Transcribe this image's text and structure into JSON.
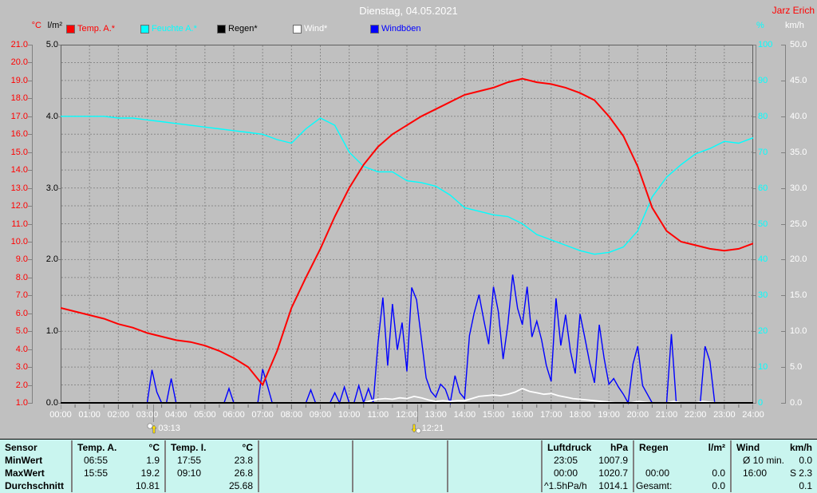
{
  "window": {
    "title": "Dienstag, 04.05.2021",
    "station_name": "Jarz Erich"
  },
  "legend": {
    "items": [
      {
        "label": "Temp. A.*",
        "color": "#ff0000"
      },
      {
        "label": "Feuchte A.*",
        "color": "#00ffff"
      },
      {
        "label": "Regen*",
        "color": "#000000"
      },
      {
        "label": "Wind*",
        "color": "#ffffff"
      },
      {
        "label": "Windböen",
        "color": "#0000ff"
      }
    ]
  },
  "chart_data": {
    "type": "line",
    "title": "Dienstag, 04.05.2021",
    "grid": "dashed-gray",
    "x_range_hours": [
      0,
      24
    ],
    "x_tick_labels": [
      "00:00",
      "01:00",
      "02:00",
      "03:00",
      "04:00",
      "05:00",
      "06:00",
      "07:00",
      "08:00",
      "09:00",
      "10:00",
      "11:00",
      "12:00",
      "13:00",
      "14:00",
      "15:00",
      "16:00",
      "17:00",
      "18:00",
      "19:00",
      "20:00",
      "21:00",
      "22:00",
      "23:00",
      "24:00"
    ],
    "axes": {
      "temp": {
        "unit": "°C",
        "color": "#ff0000",
        "min": 1,
        "max": 21,
        "tick_labels": [
          "21.0",
          "20.0",
          "19.0",
          "18.0",
          "17.0",
          "16.0",
          "15.0",
          "14.0",
          "13.0",
          "12.0",
          "11.0",
          "10.0",
          "9.0",
          "8.0",
          "7.0",
          "6.0",
          "5.0",
          "4.0",
          "3.0",
          "2.0",
          "1.0"
        ]
      },
      "rain": {
        "unit": "l/m²",
        "color": "#000000",
        "min": 0,
        "max": 5,
        "tick_labels": [
          "5.0",
          "4.0",
          "3.0",
          "2.0",
          "1.0",
          "0.0"
        ]
      },
      "hum": {
        "unit": "%",
        "color": "#00ffff",
        "min": 0,
        "max": 100,
        "tick_labels": [
          "100",
          "90",
          "80",
          "70",
          "60",
          "50",
          "40",
          "30",
          "20",
          "10",
          "0"
        ]
      },
      "wind": {
        "unit": "km/h",
        "color": "#ffffff",
        "min": 0,
        "max": 50,
        "tick_labels": [
          "50.0",
          "45.0",
          "40.0",
          "35.0",
          "30.0",
          "25.0",
          "20.0",
          "15.0",
          "10.0",
          "5.0",
          "0.0"
        ]
      }
    },
    "series": [
      {
        "name": "Temp. A.*",
        "axis": "temp",
        "color": "#ff0000",
        "width": 2,
        "step_hours": 0.5,
        "values": [
          6.3,
          6.1,
          5.9,
          5.7,
          5.4,
          5.2,
          4.9,
          4.7,
          4.5,
          4.4,
          4.2,
          3.9,
          3.5,
          3.0,
          2.0,
          3.9,
          6.3,
          8.0,
          9.6,
          11.4,
          13.0,
          14.3,
          15.3,
          16.0,
          16.5,
          17.0,
          17.4,
          17.8,
          18.2,
          18.4,
          18.6,
          18.9,
          19.1,
          18.9,
          18.8,
          18.6,
          18.3,
          17.9,
          17.0,
          15.9,
          14.2,
          11.9,
          10.6,
          10.0,
          9.8,
          9.6,
          9.5,
          9.6,
          9.9
        ]
      },
      {
        "name": "Feuchte A.*",
        "axis": "hum",
        "color": "#00ffff",
        "width": 1.4,
        "step_hours": 0.5,
        "values": [
          80,
          80,
          80,
          80,
          79.5,
          79.5,
          79,
          78.5,
          78,
          77.5,
          77,
          76.5,
          76,
          75.5,
          75,
          73.5,
          72.5,
          76.5,
          79.5,
          77.5,
          70,
          66,
          64.5,
          64.5,
          62,
          61.5,
          60.5,
          58,
          54.5,
          53.5,
          52.5,
          52,
          50,
          47,
          45.5,
          44,
          42.5,
          41.5,
          42,
          43.5,
          48,
          57.5,
          63,
          66.5,
          69.5,
          71,
          73,
          72.5,
          74
        ]
      },
      {
        "name": "Regen*",
        "axis": "rain",
        "color": "#000000",
        "width": 1.5,
        "step_hours": 6,
        "values": [
          0,
          0,
          0,
          0,
          0
        ]
      },
      {
        "name": "Wind*",
        "axis": "wind",
        "color": "#ffffff",
        "width": 1.8,
        "step_hours": 0.25,
        "values": [
          0,
          0,
          0,
          0,
          0,
          0,
          0,
          0,
          0,
          0,
          0,
          0,
          0,
          0,
          0,
          0,
          0,
          0,
          0,
          0,
          0,
          0,
          0,
          0,
          0,
          0,
          0,
          0,
          0,
          0,
          0,
          0,
          0,
          0,
          0,
          0,
          0,
          0,
          0,
          0,
          0,
          0,
          0,
          0.3,
          0.5,
          0.6,
          0.5,
          0.7,
          0.6,
          0.9,
          0.7,
          0.4,
          0.2,
          0.3,
          0.2,
          0.3,
          0.3,
          0.6,
          0.9,
          1.0,
          1.1,
          1.0,
          1.2,
          1.5,
          2.0,
          1.6,
          1.4,
          1.2,
          1.3,
          1.0,
          0.8,
          0.6,
          0.5,
          0.4,
          0.3,
          0.2,
          0.1,
          0,
          0,
          0,
          0.2,
          0.1,
          0,
          0,
          0,
          0.2,
          0,
          0,
          0,
          0.2,
          0.1,
          0,
          0,
          0,
          0,
          0,
          0
        ]
      },
      {
        "name": "Windböen",
        "axis": "wind",
        "color": "#0000ff",
        "width": 1.4,
        "step_hours": 0.16667,
        "values": [
          0,
          0,
          0,
          0,
          0,
          0,
          0,
          0,
          0,
          0,
          0,
          0,
          0,
          0,
          0,
          0,
          0,
          0,
          0,
          4.6,
          1.5,
          0,
          0,
          3.4,
          0,
          0,
          0,
          0,
          0,
          0,
          0,
          0,
          0,
          0,
          0,
          2.0,
          0,
          0,
          0,
          0,
          0,
          0,
          4.7,
          2.4,
          0,
          0,
          0,
          0,
          0,
          0,
          0,
          0,
          1.8,
          0,
          0,
          0,
          0,
          1.4,
          0,
          2.2,
          0,
          0,
          2.4,
          0,
          2.0,
          0,
          8.4,
          14.7,
          5.2,
          13.8,
          7.4,
          11.2,
          4.4,
          16.1,
          14.4,
          9.0,
          3.5,
          1.6,
          0.8,
          2.6,
          1.9,
          0,
          3.8,
          1.4,
          0.6,
          9.4,
          12.6,
          15.1,
          11.5,
          8.2,
          16.2,
          12.8,
          6.1,
          11.0,
          17.9,
          13.2,
          10.9,
          16.2,
          9.2,
          11.4,
          8.8,
          5.2,
          3.0,
          14.6,
          8.0,
          12.3,
          7.2,
          4.1,
          12.4,
          9.1,
          5.6,
          2.8,
          10.9,
          6.2,
          2.6,
          3.4,
          2.2,
          1.2,
          0,
          5.4,
          7.9,
          2.4,
          1.2,
          0,
          0,
          0,
          0,
          9.6,
          0,
          0,
          0,
          0,
          0,
          0,
          7.9,
          5.8,
          0,
          0,
          0,
          0,
          0,
          0,
          0,
          0,
          0
        ]
      }
    ],
    "markers": [
      {
        "time": "03:13",
        "hour": 3.2167,
        "icon": "moonrise-icon"
      },
      {
        "time": "12:21",
        "hour": 12.35,
        "icon": "moonset-icon"
      }
    ]
  },
  "summary_table": {
    "row_labels": [
      "Sensor",
      "MinWert",
      "MaxWert",
      "Durchschnitt"
    ],
    "columns": [
      {
        "name": "Temp. A.",
        "unit": "°C",
        "min": {
          "time": "06:55",
          "value": "1.9"
        },
        "max": {
          "time": "15:55",
          "value": "19.2"
        },
        "avg": {
          "label": "",
          "value": "10.81"
        }
      },
      {
        "name": "Temp. I.",
        "unit": "°C",
        "min": {
          "time": "17:55",
          "value": "23.8"
        },
        "max": {
          "time": "09:10",
          "value": "26.8"
        },
        "avg": {
          "label": "",
          "value": "25.68"
        }
      },
      {
        "name": "",
        "unit": "",
        "min": {
          "time": "",
          "value": ""
        },
        "max": {
          "time": "",
          "value": ""
        },
        "avg": {
          "label": "",
          "value": ""
        }
      },
      {
        "name": "",
        "unit": "",
        "min": {
          "time": "",
          "value": ""
        },
        "max": {
          "time": "",
          "value": ""
        },
        "avg": {
          "label": "",
          "value": ""
        }
      },
      {
        "name": "",
        "unit": "",
        "min": {
          "time": "",
          "value": ""
        },
        "max": {
          "time": "",
          "value": ""
        },
        "avg": {
          "label": "",
          "value": ""
        }
      },
      {
        "name": "Luftdruck",
        "unit": "hPa",
        "min": {
          "time": "23:05",
          "value": "1007.9"
        },
        "max": {
          "time": "00:00",
          "value": "1020.7"
        },
        "avg": {
          "label": "^1.5hPa/h",
          "value": "1014.1"
        }
      },
      {
        "name": "Regen",
        "unit": "l/m²",
        "min": {
          "time": "",
          "value": ""
        },
        "max": {
          "time": "00:00",
          "value": "0.0"
        },
        "avg": {
          "label": "Gesamt:",
          "value": "0.0"
        }
      },
      {
        "name": "Wind",
        "unit": "km/h",
        "min": {
          "time": "Ø 10 min.",
          "value": "0.0"
        },
        "max": {
          "time": "16:00",
          "value": "S 2.3"
        },
        "avg": {
          "label": "",
          "value": "0.1"
        }
      }
    ]
  }
}
